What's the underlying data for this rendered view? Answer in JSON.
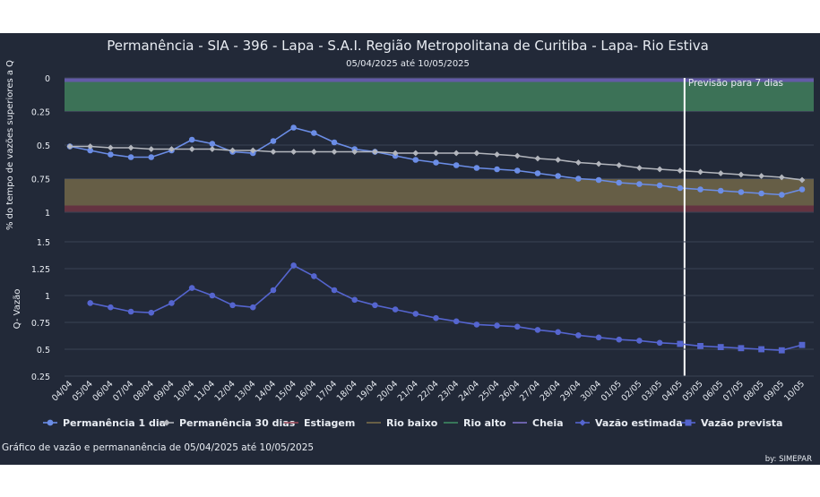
{
  "chart_data": {
    "type": "line",
    "title": "Permanência - SIA - 396 - Lapa - S.A.I. Região Metropolitana de Curitiba - Lapa- Rio Estiva",
    "subtitle": "05/04/2025 até 10/05/2025",
    "categories": [
      "04/04",
      "05/04",
      "06/04",
      "07/04",
      "08/04",
      "09/04",
      "10/04",
      "11/04",
      "12/04",
      "13/04",
      "14/04",
      "15/04",
      "16/04",
      "17/04",
      "18/04",
      "19/04",
      "20/04",
      "21/04",
      "22/04",
      "23/04",
      "24/04",
      "25/04",
      "26/04",
      "27/04",
      "28/04",
      "29/04",
      "30/04",
      "01/05",
      "02/05",
      "03/05",
      "04/05",
      "05/05",
      "06/05",
      "07/05",
      "08/05",
      "09/05",
      "10/05"
    ],
    "forecast_label": "Previsão para 7 dias",
    "forecast_start": "04/05",
    "top_panel": {
      "ylabel": "% do tempo de vazões superiores a Q",
      "y_ticks": [
        "0",
        "0.25",
        "0.5",
        "0.75",
        "1"
      ],
      "ylim": [
        1,
        0
      ],
      "bands": [
        {
          "name": "Cheia",
          "from": 0,
          "to": 0.03,
          "color": "#6a5fb4"
        },
        {
          "name": "Rio alto",
          "from": 0.03,
          "to": 0.25,
          "color": "#3f7a5b"
        },
        {
          "name": "Rio baixo",
          "from": 0.75,
          "to": 0.95,
          "color": "#6e6448"
        },
        {
          "name": "Estiagem",
          "from": 0.95,
          "to": 1,
          "color": "#6b3442"
        }
      ],
      "series": [
        {
          "name": "Permanência 1 dia",
          "color": "#6b8de6",
          "x_start": 0,
          "values": [
            0.51,
            0.54,
            0.57,
            0.59,
            0.59,
            0.54,
            0.46,
            0.49,
            0.55,
            0.56,
            0.47,
            0.37,
            0.41,
            0.48,
            0.53,
            0.55,
            0.58,
            0.61,
            0.63,
            0.65,
            0.67,
            0.68,
            0.69,
            0.71,
            0.73,
            0.75,
            0.76,
            0.78,
            0.79,
            0.8,
            0.82,
            0.83,
            0.84,
            0.85,
            0.86,
            0.87,
            0.83
          ]
        },
        {
          "name": "Permanência 30 dias",
          "color": "#b3b6bd",
          "x_start": 0,
          "values": [
            0.51,
            0.51,
            0.52,
            0.52,
            0.53,
            0.53,
            0.53,
            0.53,
            0.54,
            0.54,
            0.55,
            0.55,
            0.55,
            0.55,
            0.55,
            0.55,
            0.56,
            0.56,
            0.56,
            0.56,
            0.56,
            0.57,
            0.58,
            0.6,
            0.61,
            0.63,
            0.64,
            0.65,
            0.67,
            0.68,
            0.69,
            0.7,
            0.71,
            0.72,
            0.73,
            0.74,
            0.76
          ]
        }
      ]
    },
    "bottom_panel": {
      "ylabel": "Q- Vazão",
      "y_ticks": [
        "0.25",
        "0.5",
        "0.75",
        "1",
        "1.25",
        "1.5"
      ],
      "ylim": [
        0.25,
        1.5
      ],
      "series": [
        {
          "name": "Vazão estimada",
          "color": "#5565cf",
          "marker": "circle",
          "x_start": 1,
          "values": [
            0.93,
            0.89,
            0.85,
            0.84,
            0.93,
            1.07,
            1.0,
            0.91,
            0.89,
            1.05,
            1.28,
            1.18,
            1.05,
            0.96,
            0.91,
            0.87,
            0.83,
            0.79,
            0.76,
            0.73,
            0.72,
            0.71,
            0.68,
            0.66,
            0.63,
            0.61,
            0.59,
            0.58,
            0.56,
            0.55
          ]
        },
        {
          "name": "Vazão prevista",
          "color": "#5565cf",
          "marker": "square",
          "x_start": 30,
          "values": [
            0.55,
            0.53,
            0.52,
            0.51,
            0.5,
            0.49,
            0.54
          ]
        }
      ]
    },
    "legend": [
      {
        "name": "Permanência 1 dia",
        "color": "#6b8de6",
        "marker": "circle"
      },
      {
        "name": "Permanência 30 dias",
        "color": "#b3b6bd",
        "marker": "diamond"
      },
      {
        "name": "Estiagem",
        "color": "#9b4a5a",
        "marker": "line"
      },
      {
        "name": "Rio baixo",
        "color": "#7a6d4b",
        "marker": "line"
      },
      {
        "name": "Rio alto",
        "color": "#3f8a62",
        "marker": "line"
      },
      {
        "name": "Cheia",
        "color": "#7d70c8",
        "marker": "line"
      },
      {
        "name": "Vazão estimada",
        "color": "#5565cf",
        "marker": "diamond"
      },
      {
        "name": "Vazão prevista",
        "color": "#5565cf",
        "marker": "square"
      }
    ],
    "footer_caption": "Gráfico de vazão e permananência de 05/04/2025 até 10/05/2025",
    "credit": "by: SIMEPAR"
  }
}
